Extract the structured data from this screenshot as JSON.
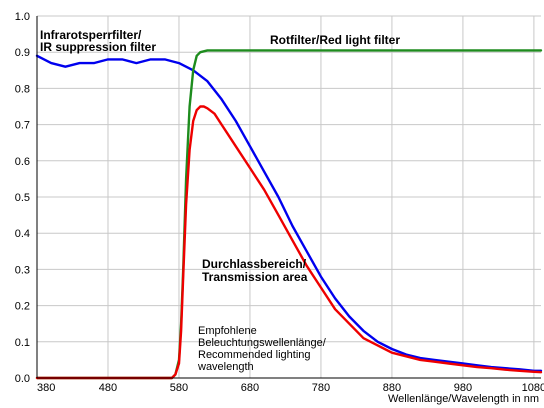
{
  "chart_data": {
    "type": "line",
    "title": "",
    "xlabel": "Wellenlänge/Wavelength in nm",
    "ylabel": "",
    "xlim": [
      380,
      1090
    ],
    "ylim": [
      0,
      1.0
    ],
    "xticks": [
      380,
      480,
      580,
      680,
      780,
      880,
      980,
      1080
    ],
    "yticks": [
      0.0,
      0.1,
      0.2,
      0.3,
      0.4,
      0.5,
      0.6,
      0.7,
      0.8,
      0.9,
      1.0
    ],
    "ytick_labels": [
      "0.0",
      "0.1",
      "0.2",
      "0.3",
      "0.4",
      "0.5",
      "0.6",
      "0.7",
      "0.8",
      "0.9",
      "1.0"
    ],
    "grid": true,
    "series": [
      {
        "color": "#0000ee",
        "x": [
          380,
          400,
          420,
          440,
          460,
          480,
          500,
          520,
          540,
          560,
          580,
          600,
          620,
          640,
          660,
          680,
          700,
          720,
          740,
          760,
          780,
          800,
          820,
          840,
          860,
          880,
          900,
          920,
          940,
          960,
          980,
          1000,
          1020,
          1040,
          1060,
          1080,
          1090
        ],
        "y": [
          0.89,
          0.87,
          0.86,
          0.87,
          0.87,
          0.88,
          0.88,
          0.87,
          0.88,
          0.88,
          0.87,
          0.85,
          0.82,
          0.77,
          0.71,
          0.64,
          0.57,
          0.5,
          0.42,
          0.35,
          0.28,
          0.22,
          0.17,
          0.13,
          0.1,
          0.08,
          0.065,
          0.055,
          0.05,
          0.045,
          0.04,
          0.035,
          0.03,
          0.027,
          0.024,
          0.02,
          0.02
        ]
      },
      {
        "color": "#1e8c1e",
        "x": [
          380,
          570,
          575,
          580,
          583,
          586,
          590,
          595,
          600,
          605,
          610,
          620,
          640,
          700,
          800,
          900,
          1000,
          1090
        ],
        "y": [
          0.0,
          0.0,
          0.01,
          0.05,
          0.15,
          0.3,
          0.55,
          0.75,
          0.85,
          0.89,
          0.9,
          0.905,
          0.905,
          0.905,
          0.905,
          0.905,
          0.905,
          0.905
        ]
      },
      {
        "color": "#ee0000",
        "x": [
          380,
          570,
          575,
          580,
          583,
          586,
          590,
          595,
          600,
          605,
          610,
          615,
          620,
          630,
          640,
          660,
          680,
          700,
          720,
          740,
          760,
          780,
          800,
          820,
          840,
          860,
          880,
          900,
          920,
          940,
          960,
          980,
          1000,
          1020,
          1040,
          1060,
          1080,
          1090
        ],
        "y": [
          0.0,
          0.0,
          0.01,
          0.04,
          0.13,
          0.28,
          0.48,
          0.63,
          0.71,
          0.74,
          0.75,
          0.75,
          0.745,
          0.73,
          0.7,
          0.64,
          0.58,
          0.52,
          0.45,
          0.38,
          0.31,
          0.25,
          0.19,
          0.15,
          0.11,
          0.09,
          0.07,
          0.06,
          0.05,
          0.045,
          0.04,
          0.035,
          0.03,
          0.027,
          0.023,
          0.02,
          0.017,
          0.016
        ]
      }
    ],
    "annotations": {
      "ir_filter_line1": "Infrarotsperrfilter/",
      "ir_filter_line2": "IR suppression filter",
      "red_filter": "Rotfilter/Red light filter",
      "transmission_line1": "Durchlassbereich/",
      "transmission_line2": "Transmission area",
      "recommended_line1": "Empfohlene",
      "recommended_line2": "Beleuchtungswellenlänge/",
      "recommended_line3": "Recommended lighting",
      "recommended_line4": "wavelength"
    }
  }
}
